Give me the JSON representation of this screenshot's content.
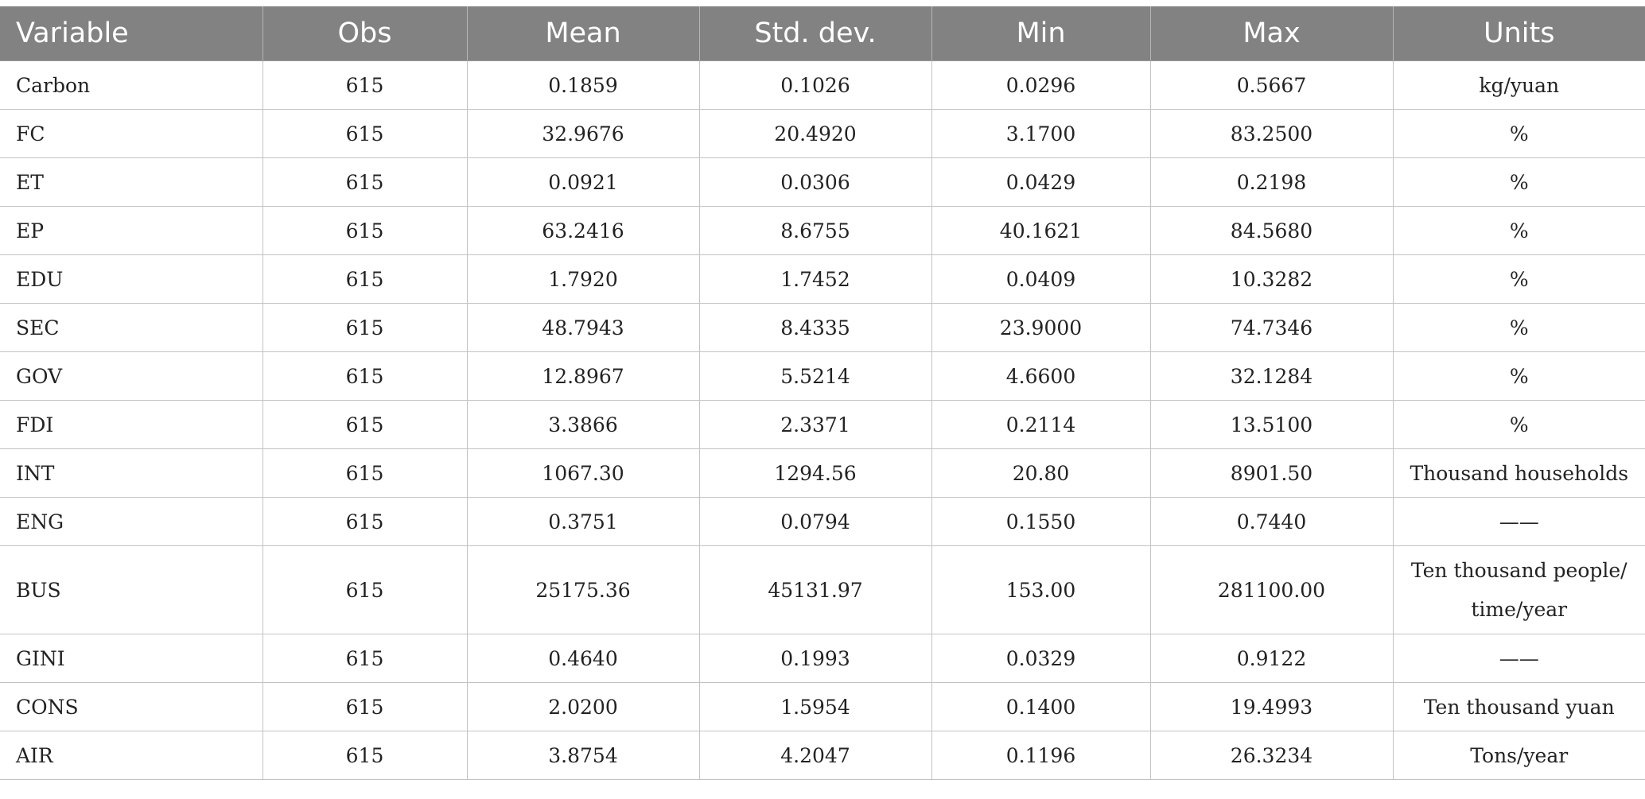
{
  "table": {
    "headers": [
      "Variable",
      "Obs",
      "Mean",
      "Std. dev.",
      "Min",
      "Max",
      "Units"
    ],
    "rows": [
      {
        "variable": "Carbon",
        "obs": "615",
        "mean": "0.1859",
        "std": "0.1026",
        "min": "0.0296",
        "max": "0.5667",
        "units": "kg/yuan"
      },
      {
        "variable": "FC",
        "obs": "615",
        "mean": "32.9676",
        "std": "20.4920",
        "min": "3.1700",
        "max": "83.2500",
        "units": "%"
      },
      {
        "variable": "ET",
        "obs": "615",
        "mean": "0.0921",
        "std": "0.0306",
        "min": "0.0429",
        "max": "0.2198",
        "units": "%"
      },
      {
        "variable": "EP",
        "obs": "615",
        "mean": "63.2416",
        "std": "8.6755",
        "min": "40.1621",
        "max": "84.5680",
        "units": "%"
      },
      {
        "variable": "EDU",
        "obs": "615",
        "mean": "1.7920",
        "std": "1.7452",
        "min": "0.0409",
        "max": "10.3282",
        "units": "%"
      },
      {
        "variable": "SEC",
        "obs": "615",
        "mean": "48.7943",
        "std": "8.4335",
        "min": "23.9000",
        "max": "74.7346",
        "units": "%"
      },
      {
        "variable": "GOV",
        "obs": "615",
        "mean": "12.8967",
        "std": "5.5214",
        "min": "4.6600",
        "max": "32.1284",
        "units": "%"
      },
      {
        "variable": "FDI",
        "obs": "615",
        "mean": "3.3866",
        "std": "2.3371",
        "min": "0.2114",
        "max": "13.5100",
        "units": "%"
      },
      {
        "variable": "INT",
        "obs": "615",
        "mean": "1067.30",
        "std": "1294.56",
        "min": "20.80",
        "max": "8901.50",
        "units": "Thousand households"
      },
      {
        "variable": "ENG",
        "obs": "615",
        "mean": "0.3751",
        "std": "0.0794",
        "min": "0.1550",
        "max": "0.7440",
        "units": "——"
      },
      {
        "variable": "BUS",
        "obs": "615",
        "mean": "25175.36",
        "std": "45131.97",
        "min": "153.00",
        "max": "281100.00",
        "units_lines": [
          "Ten thousand people/",
          "time/year"
        ]
      },
      {
        "variable": "GINI",
        "obs": "615",
        "mean": "0.4640",
        "std": "0.1993",
        "min": "0.0329",
        "max": "0.9122",
        "units": "——"
      },
      {
        "variable": "CONS",
        "obs": "615",
        "mean": "2.0200",
        "std": "1.5954",
        "min": "0.1400",
        "max": "19.4993",
        "units": "Ten thousand yuan"
      },
      {
        "variable": "AIR",
        "obs": "615",
        "mean": "3.8754",
        "std": "4.2047",
        "min": "0.1196",
        "max": "26.3234",
        "units": "Tons/year"
      }
    ]
  }
}
